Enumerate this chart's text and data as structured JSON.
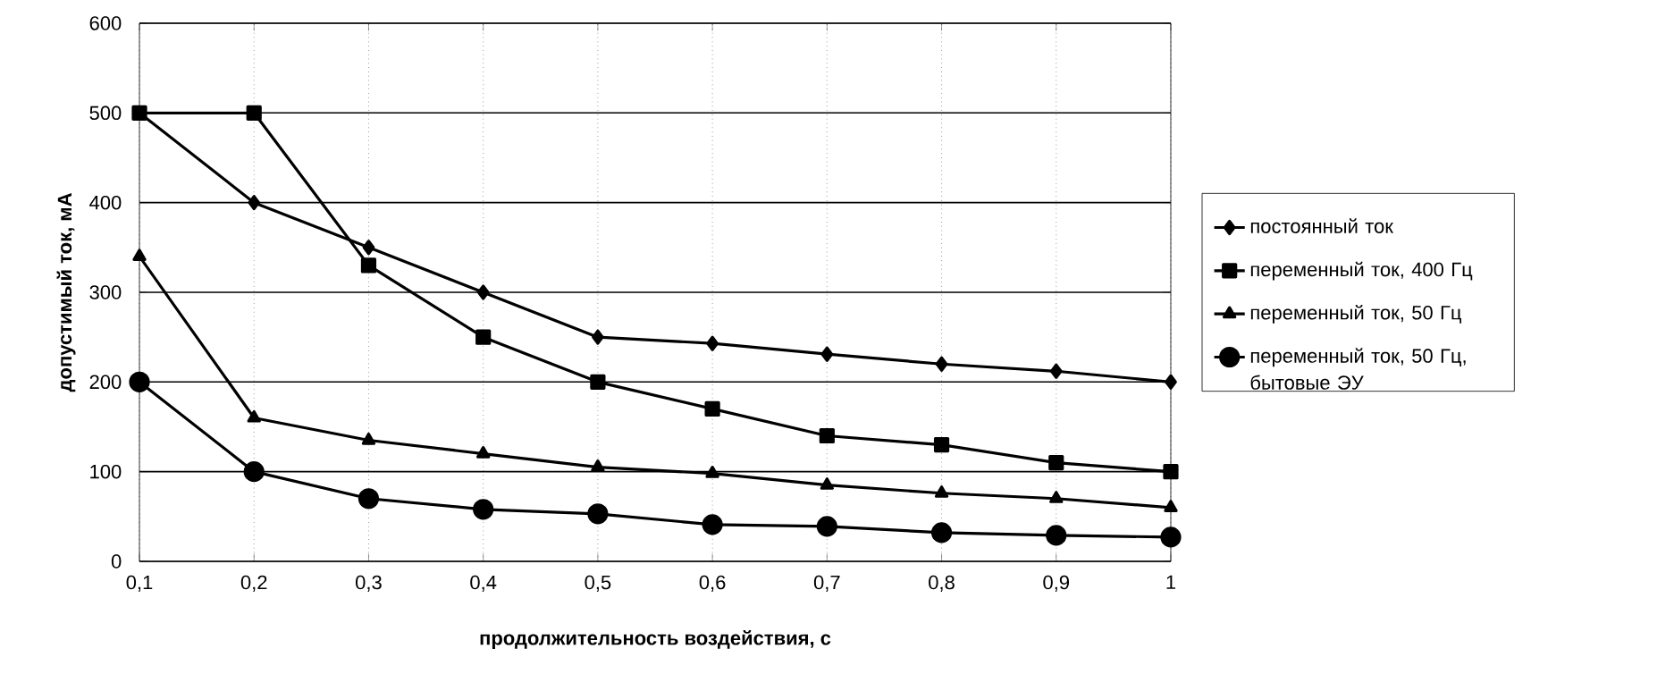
{
  "chart_data": {
    "type": "line",
    "xlabel": "продолжительность воздействия, с",
    "ylabel": "допустимый ток,  мА",
    "x": [
      0.1,
      0.2,
      0.3,
      0.4,
      0.5,
      0.6,
      0.7,
      0.8,
      0.9,
      1
    ],
    "series": [
      {
        "name": "постоянный ток",
        "color": "#000000",
        "marker": "diamond",
        "values": [
          500,
          400,
          350,
          300,
          250,
          243,
          231,
          220,
          212,
          200
        ]
      },
      {
        "name": "переменный ток, 400 Гц",
        "color": "#000000",
        "marker": "square",
        "values": [
          500,
          500,
          330,
          250,
          200,
          170,
          140,
          130,
          110,
          100
        ]
      },
      {
        "name": "переменный ток, 50 Гц",
        "color": "#000000",
        "marker": "triangle",
        "values": [
          340,
          160,
          135,
          120,
          105,
          98,
          85,
          76,
          70,
          60
        ]
      },
      {
        "name": "переменный ток, 50 Гц, бытовые ЭУ",
        "color": "#000000",
        "marker": "circle",
        "values": [
          200,
          100,
          70,
          58,
          53,
          41,
          39,
          32,
          29,
          27
        ]
      }
    ],
    "xlim": [
      0.1,
      1
    ],
    "xticks": [
      {
        "value": 0.1,
        "label": "0,1"
      },
      {
        "value": 0.2,
        "label": "0,2"
      },
      {
        "value": 0.3,
        "label": "0,3"
      },
      {
        "value": 0.4,
        "label": "0,4"
      },
      {
        "value": 0.5,
        "label": "0,5"
      },
      {
        "value": 0.6,
        "label": "0,6"
      },
      {
        "value": 0.7,
        "label": "0,7"
      },
      {
        "value": 0.8,
        "label": "0,8"
      },
      {
        "value": 0.9,
        "label": "0,9"
      },
      {
        "value": 1,
        "label": "1"
      }
    ],
    "ylim": [
      0,
      600
    ],
    "yticks": [
      0,
      100,
      200,
      300,
      400,
      500,
      600
    ],
    "grid": true,
    "legend": "right",
    "line_style": "solid"
  }
}
